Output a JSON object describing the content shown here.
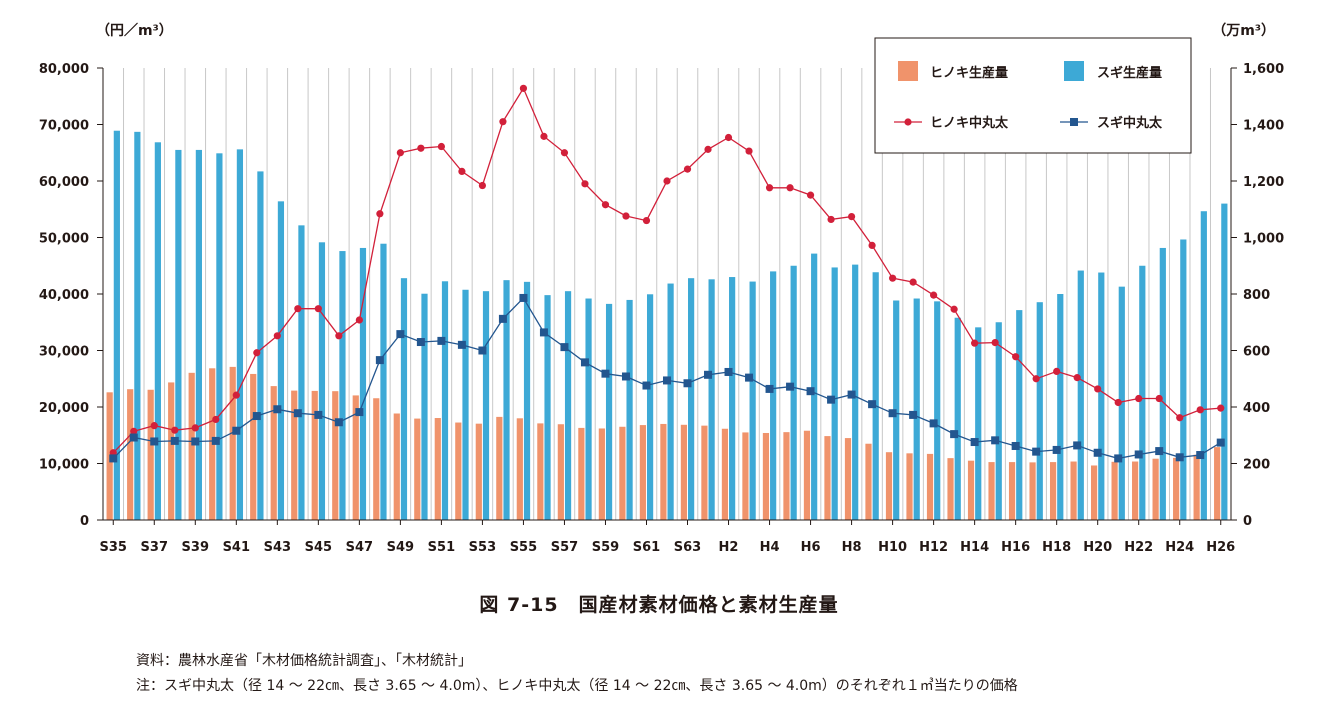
{
  "chart_data": {
    "type": "bar",
    "left_unit": "（円／m³）",
    "right_unit": "（万m³）",
    "x_tick_labels": [
      "S35",
      "S37",
      "S39",
      "S41",
      "S43",
      "S45",
      "S47",
      "S49",
      "S51",
      "S53",
      "S55",
      "S57",
      "S59",
      "S61",
      "S63",
      "H2",
      "H4",
      "H6",
      "H8",
      "H10",
      "H12",
      "H14",
      "H16",
      "H18",
      "H20",
      "H22",
      "H24",
      "H26"
    ],
    "left_axis": {
      "ylim": [
        0,
        80000
      ],
      "ticks": [
        "0",
        "10,000",
        "20,000",
        "30,000",
        "40,000",
        "50,000",
        "60,000",
        "70,000",
        "80,000"
      ]
    },
    "right_axis": {
      "ylim": [
        0,
        1600
      ],
      "ticks": [
        "0",
        "200",
        "400",
        "600",
        "800",
        "1,000",
        "1,200",
        "1,400",
        "1,600"
      ]
    },
    "legend_position": "top-right",
    "grid": "vertical",
    "categories": [
      "S35",
      "S36",
      "S37",
      "S38",
      "S39",
      "S40",
      "S41",
      "S42",
      "S43",
      "S44",
      "S45",
      "S46",
      "S47",
      "S48",
      "S49",
      "S50",
      "S51",
      "S52",
      "S53",
      "S54",
      "S55",
      "S56",
      "S57",
      "S58",
      "S59",
      "S60",
      "S61",
      "S62",
      "S63",
      "H1",
      "H2",
      "H3",
      "H4",
      "H5",
      "H6",
      "H7",
      "H8",
      "H9",
      "H10",
      "H11",
      "H12",
      "H13",
      "H14",
      "H15",
      "H16",
      "H17",
      "H18",
      "H19",
      "H20",
      "H21",
      "H22",
      "H23",
      "H24",
      "H25",
      "H26"
    ],
    "series": [
      {
        "name": "ヒノキ生産量",
        "axis": "right",
        "kind": "bar",
        "color": "#F0936B",
        "values": [
          452,
          463,
          461,
          487,
          521,
          537,
          542,
          517,
          474,
          458,
          457,
          456,
          441,
          431,
          377,
          359,
          361,
          345,
          341,
          365,
          360,
          342,
          339,
          326,
          324,
          330,
          336,
          340,
          337,
          334,
          323,
          310,
          308,
          311,
          316,
          297,
          290,
          270,
          240,
          236,
          234,
          219,
          210,
          205,
          205,
          204,
          205,
          207,
          193,
          206,
          207,
          217,
          220,
          231,
          258
        ]
      },
      {
        "name": "スギ生産量",
        "axis": "right",
        "kind": "bar",
        "color": "#3DA9D6",
        "values": [
          1378,
          1374,
          1337,
          1310,
          1310,
          1298,
          1312,
          1234,
          1128,
          1043,
          983,
          952,
          963,
          978,
          856,
          801,
          845,
          815,
          810,
          849,
          843,
          796,
          810,
          784,
          765,
          779,
          799,
          837,
          856,
          852,
          860,
          844,
          880,
          900,
          943,
          894,
          904,
          877,
          777,
          784,
          774,
          716,
          682,
          700,
          743,
          771,
          800,
          883,
          876,
          826,
          900,
          963,
          993,
          1093,
          1120
        ]
      },
      {
        "name": "ヒノキ中丸太",
        "axis": "left",
        "kind": "line",
        "color": "#D2203A",
        "marker": "circle",
        "values": [
          11900,
          15700,
          16700,
          15900,
          16300,
          17800,
          22100,
          29600,
          32600,
          37400,
          37400,
          32600,
          35400,
          54200,
          65000,
          65800,
          66100,
          61700,
          59200,
          70500,
          76400,
          67900,
          65000,
          59500,
          55800,
          53800,
          53000,
          60000,
          62100,
          65600,
          67700,
          65300,
          58800,
          58800,
          57500,
          53200,
          53700,
          48600,
          42800,
          42100,
          39800,
          37300,
          31300,
          31400,
          28900,
          25000,
          26300,
          25200,
          23200,
          20800,
          21500,
          21500,
          18100,
          19500,
          19800
        ]
      },
      {
        "name": "スギ中丸太",
        "axis": "left",
        "kind": "line",
        "color": "#23568F",
        "marker": "square",
        "values": [
          10900,
          14600,
          13900,
          14000,
          13900,
          14000,
          15800,
          18400,
          19600,
          18900,
          18600,
          17300,
          19100,
          28300,
          32900,
          31500,
          31700,
          31000,
          30000,
          35600,
          39300,
          33200,
          30600,
          27900,
          25900,
          25400,
          23800,
          24700,
          24200,
          25700,
          26200,
          25200,
          23200,
          23600,
          22800,
          21300,
          22200,
          20500,
          18900,
          18600,
          17100,
          15200,
          13800,
          14100,
          13100,
          12100,
          12400,
          13200,
          11900,
          10900,
          11600,
          12200,
          11100,
          11500,
          13700
        ]
      }
    ]
  },
  "caption": "図 7-15　国産材素材価格と素材生産量",
  "notes": {
    "source": "資料：農林水産省「木材価格統計調査」、「木材統計」",
    "note": "注：スギ中丸太（径 14 ～ 22㎝、長さ 3.65 ～ 4.0m）、ヒノキ中丸太（径 14 ～ 22㎝、長さ 3.65 ～ 4.0m）のそれぞれ１㎥当たりの価格"
  }
}
